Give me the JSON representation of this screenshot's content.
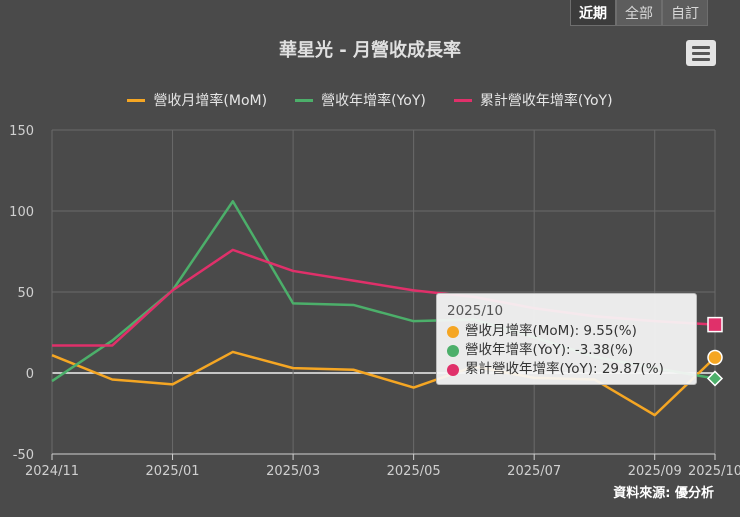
{
  "range_tabs": [
    "近期",
    "全部",
    "自訂"
  ],
  "title": "華星光 - 月營收成長率",
  "legend": [
    {
      "label": "營收月增率(MoM)",
      "color": "#f5a623"
    },
    {
      "label": "營收年增率(YoY)",
      "color": "#4caf6a"
    },
    {
      "label": "累計營收年增率(YoY)",
      "color": "#e0306a"
    }
  ],
  "tooltip": {
    "header": "2025/10",
    "rows": [
      {
        "text": "營收月增率(MoM): 9.55(%)",
        "color": "#f5a623"
      },
      {
        "text": "營收年增率(YoY): -3.38(%)",
        "color": "#4caf6a"
      },
      {
        "text": "累計營收年增率(YoY): 29.87(%)",
        "color": "#e0306a"
      }
    ]
  },
  "credit": "資料來源: 優分析",
  "chart_data": {
    "type": "line",
    "x": [
      "2024/11",
      "2024/12",
      "2025/01",
      "2025/02",
      "2025/03",
      "2025/04",
      "2025/05",
      "2025/06",
      "2025/07",
      "2025/08",
      "2025/09",
      "2025/10"
    ],
    "x_ticks": [
      "2024/11",
      "2025/01",
      "2025/03",
      "2025/05",
      "2025/07",
      "2025/09",
      "2025/10"
    ],
    "y_ticks": [
      150,
      100,
      50,
      0,
      -50
    ],
    "ylim": [
      -50,
      150
    ],
    "series": [
      {
        "name": "營收月增率(MoM)",
        "color": "#f5a623",
        "values": [
          11,
          -4,
          -7,
          13,
          3,
          2,
          -9,
          4,
          -3,
          -4,
          -26,
          9.55
        ]
      },
      {
        "name": "營收年增率(YoY)",
        "color": "#4caf6a",
        "values": [
          -5,
          20,
          51,
          106,
          43,
          42,
          32,
          33,
          22,
          10,
          3,
          -3.38
        ]
      },
      {
        "name": "累計營收年增率(YoY)",
        "color": "#e0306a",
        "values": [
          17,
          17,
          51,
          76,
          63,
          57,
          51,
          47,
          40,
          35,
          32,
          29.87
        ]
      }
    ]
  }
}
